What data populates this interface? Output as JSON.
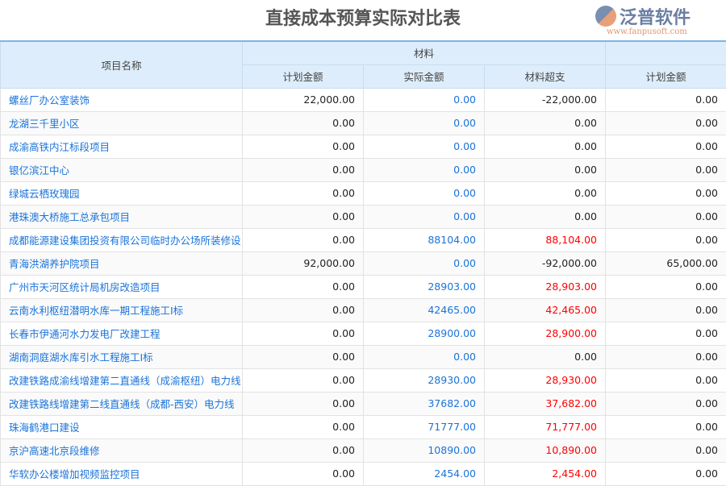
{
  "title": "直接成本预算实际对比表",
  "header": {
    "project_name": "项目名称",
    "group_material": "材料",
    "plan": "计划金额",
    "actual": "实际金额",
    "overrun": "材料超支",
    "plan2": "计划金额"
  },
  "rows": [
    [
      "螺丝厂办公室装饰",
      "22,000.00",
      "0.00",
      "-22,000.00",
      "0.00"
    ],
    [
      "龙湖三千里小区",
      "0.00",
      "0.00",
      "0.00",
      "0.00"
    ],
    [
      "成渝高铁内江标段项目",
      "0.00",
      "0.00",
      "0.00",
      "0.00"
    ],
    [
      "银亿滨江中心",
      "0.00",
      "0.00",
      "0.00",
      "0.00"
    ],
    [
      "绿城云栖玫瑰园",
      "0.00",
      "0.00",
      "0.00",
      "0.00"
    ],
    [
      "港珠澳大桥施工总承包项目",
      "0.00",
      "0.00",
      "0.00",
      "0.00"
    ],
    [
      "成都能源建设集团投资有限公司临时办公场所装修设",
      "0.00",
      "88104.00",
      "88,104.00",
      "0.00"
    ],
    [
      "青海洪湖养护院项目",
      "92,000.00",
      "0.00",
      "-92,000.00",
      "65,000.00"
    ],
    [
      "广州市天河区统计局机房改造项目",
      "0.00",
      "28903.00",
      "28,903.00",
      "0.00"
    ],
    [
      "云南水利枢纽潜明水库一期工程施工I标",
      "0.00",
      "42465.00",
      "42,465.00",
      "0.00"
    ],
    [
      "长春市伊通河水力发电厂改建工程",
      "0.00",
      "28900.00",
      "28,900.00",
      "0.00"
    ],
    [
      "湖南洞庭湖水库引水工程施工I标",
      "0.00",
      "0.00",
      "0.00",
      "0.00"
    ],
    [
      "改建铁路成渝线增建第二直通线（成渝枢纽）电力线",
      "0.00",
      "28930.00",
      "28,930.00",
      "0.00"
    ],
    [
      "改建铁路线增建第二线直通线（成都-西安）电力线",
      "0.00",
      "37682.00",
      "37,682.00",
      "0.00"
    ],
    [
      "珠海鹤港口建设",
      "0.00",
      "71777.00",
      "71,777.00",
      "0.00"
    ],
    [
      "京沪高速北京段维修",
      "0.00",
      "10890.00",
      "10,890.00",
      "0.00"
    ],
    [
      "华软办公楼增加视频监控项目",
      "0.00",
      "2454.00",
      "2,454.00",
      "0.00"
    ]
  ],
  "watermark": {
    "brand": "泛普软件",
    "url": "www.fanpusoft.com"
  }
}
